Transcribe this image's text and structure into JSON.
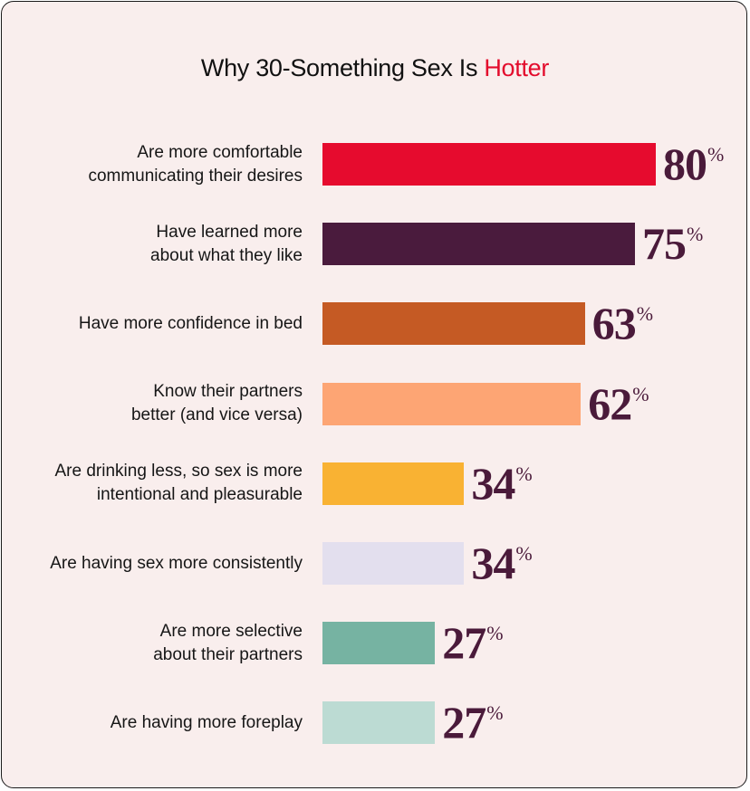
{
  "title": {
    "prefix": "Why 30-Something Sex Is ",
    "highlight": "Hotter",
    "highlight_color": "#e30b2c"
  },
  "chart_data": {
    "type": "bar",
    "orientation": "horizontal",
    "categories": [
      "Are more comfortable\ncommunicating their desires",
      "Have learned more\nabout what they like",
      "Have more confidence in bed",
      "Know their partners\nbetter (and vice versa)",
      "Are drinking less, so sex is more\nintentional and pleasurable",
      "Are having sex more consistently",
      "Are more selective\nabout their partners",
      "Are having more foreplay"
    ],
    "values": [
      80,
      75,
      63,
      62,
      34,
      34,
      27,
      27
    ],
    "value_suffix": "%",
    "colors": [
      "#e60b2e",
      "#4a1b3d",
      "#c55a24",
      "#fda574",
      "#f9b233",
      "#e3dfee",
      "#76b3a2",
      "#bcdbd3"
    ],
    "grid": false,
    "legend": "none"
  }
}
